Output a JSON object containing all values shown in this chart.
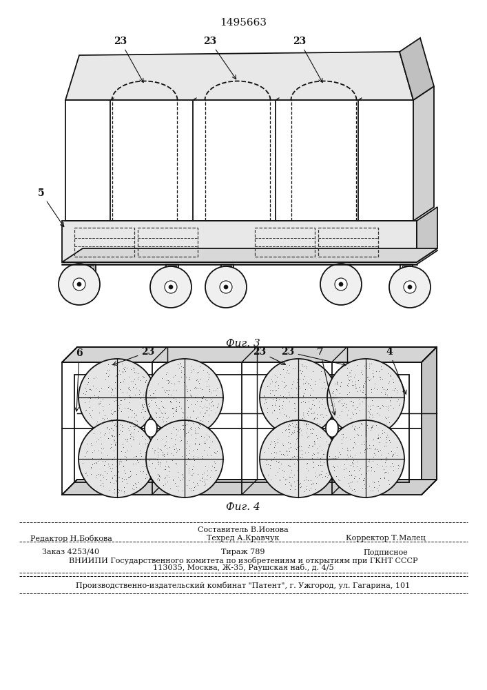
{
  "patent_number": "1495663",
  "fig3_label": "Фиг. 3",
  "fig4_label": "Фиг. 4",
  "footer_sestavitel": "Составитель В.Ионова",
  "footer_redaktor": "Редактор Н.Бобкова",
  "footer_tehred": "Техред А.Кравчук",
  "footer_korrektor": "Корректор Т.Малец",
  "footer_zakaz": "Заказ 4253/40",
  "footer_tirazh": "Тираж 789",
  "footer_podpisnoe": "Подписное",
  "footer_vniip": "ВНИИПИ Государственного комитета по изобретениям и открытиям при ГКНТ СССР",
  "footer_addr": "113035, Москва, Ж-35, Раушская наб., д. 4/5",
  "footer_patent": "Производственно-издательский комбинат \"Патент\", г. Ужгород, ул. Гагарина, 101",
  "line_color": "#111111"
}
